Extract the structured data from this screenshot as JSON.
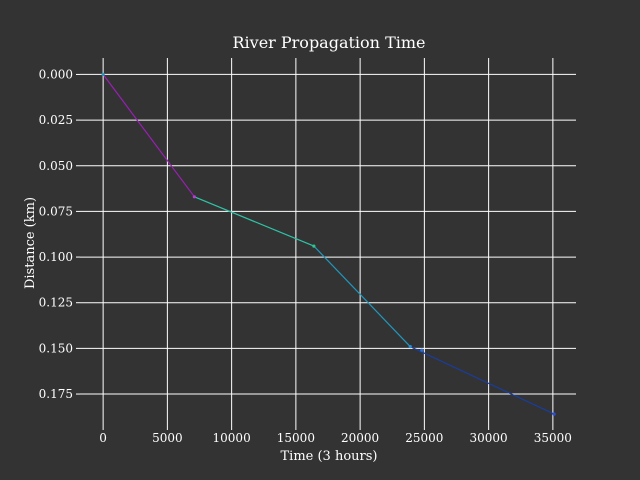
{
  "chart_data": {
    "type": "line",
    "title": "River Propagation Time",
    "xlabel": "Time (3 hours)",
    "ylabel": "Distance (km)",
    "xlim": [
      -1800,
      36800
    ],
    "ylim": [
      0.1925,
      -0.009
    ],
    "y_inverted": true,
    "grid": true,
    "x_ticks": [
      0,
      5000,
      10000,
      15000,
      20000,
      25000,
      30000,
      35000
    ],
    "x_tick_labels": [
      "0",
      "5000",
      "10000",
      "15000",
      "20000",
      "25000",
      "30000",
      "35000"
    ],
    "y_ticks": [
      0.0,
      0.025,
      0.05,
      0.075,
      0.1,
      0.125,
      0.15,
      0.175
    ],
    "y_tick_labels": [
      "0.000",
      "0.025",
      "0.050",
      "0.075",
      "0.100",
      "0.125",
      "0.150",
      "0.175"
    ],
    "series": [
      {
        "points": [
          [
            0,
            0.0
          ],
          [
            7100,
            0.067
          ]
        ],
        "color": "#9b1fb5"
      },
      {
        "points": [
          [
            7100,
            0.067
          ],
          [
            16400,
            0.094
          ]
        ],
        "color": "#2ec4a6"
      },
      {
        "points": [
          [
            16400,
            0.094
          ],
          [
            23900,
            0.149
          ]
        ],
        "color": "#2197bd"
      },
      {
        "points": [
          [
            23900,
            0.149
          ],
          [
            35100,
            0.186
          ]
        ],
        "color": "#1a3d9c"
      }
    ],
    "markers": [
      {
        "x": 0,
        "y": 0.0,
        "color": "#2197bd"
      },
      {
        "x": 7100,
        "y": 0.067,
        "color": "#b040d0"
      },
      {
        "x": 16400,
        "y": 0.094,
        "color": "#2ec48a"
      },
      {
        "x": 23900,
        "y": 0.149,
        "color": "#2a8fd6"
      },
      {
        "x": 24800,
        "y": 0.151,
        "color": "#2a6fd6"
      },
      {
        "x": 35100,
        "y": 0.186,
        "color": "#2a4fd6"
      }
    ],
    "colors": {
      "background": "#333333",
      "text": "#ffffff",
      "grid": "#ffffff"
    }
  }
}
